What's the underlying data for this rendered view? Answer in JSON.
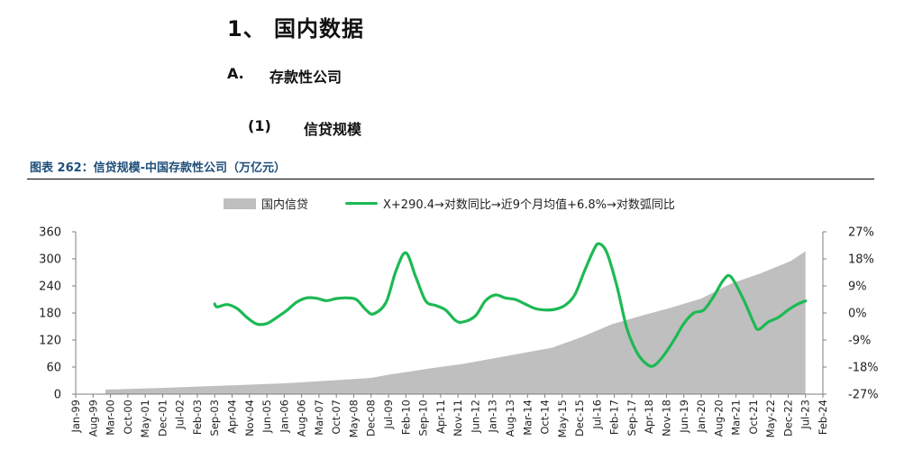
{
  "headings": {
    "h1": "1、 国内数据",
    "h2_num": "A.",
    "h2_text": "存款性公司",
    "h3_num": "(1)",
    "h3_text": "信贷规模"
  },
  "caption": "图表 262：信贷规模-中国存款性公司（万亿元）",
  "colors": {
    "area": "#bfbfbf",
    "line": "#1db954",
    "caption": "#1f4e79"
  },
  "chart_data": {
    "type": "area",
    "title": "图表 262：信贷规模-中国存款性公司（万亿元）",
    "xlabel": "",
    "ylabel": "",
    "legend_position": "top-center",
    "grid": false,
    "x_tick_labels": [
      "Jan-99",
      "Aug-99",
      "Mar-00",
      "Oct-00",
      "May-01",
      "Dec-01",
      "Jul-02",
      "Feb-03",
      "Sep-03",
      "Apr-04",
      "Nov-04",
      "Jun-05",
      "Jan-06",
      "Aug-06",
      "Mar-07",
      "Oct-07",
      "May-08",
      "Dec-08",
      "Jul-09",
      "Feb-10",
      "Sep-10",
      "Apr-11",
      "Nov-11",
      "Jun-12",
      "Jan-13",
      "Aug-13",
      "Mar-14",
      "Oct-14",
      "May-15",
      "Dec-15",
      "Jul-16",
      "Feb-17",
      "Sep-17",
      "Apr-18",
      "Nov-18",
      "Jun-19",
      "Jan-20",
      "Aug-20",
      "Mar-21",
      "Oct-21",
      "May-22",
      "Dec-22",
      "Jul-23",
      "Feb-24"
    ],
    "x_range": [
      "Jan-99",
      "Feb-24"
    ],
    "y_left": {
      "range": [
        0,
        360
      ],
      "ticks": [
        0,
        60,
        120,
        180,
        240,
        300,
        360
      ]
    },
    "y_right": {
      "range": [
        -27,
        27
      ],
      "ticks": [
        "27%",
        "18%",
        "9%",
        "0%",
        "-9%",
        "-18%",
        "-27%"
      ]
    },
    "series": [
      {
        "name": "国内信贷",
        "kind": "area",
        "axis": "left",
        "points": [
          [
            "Jan-00",
            10
          ],
          [
            "Jan-02",
            14
          ],
          [
            "Jan-04",
            19
          ],
          [
            "Jan-06",
            24
          ],
          [
            "Jan-08",
            32
          ],
          [
            "Dec-08",
            36
          ],
          [
            "Jul-09",
            43
          ],
          [
            "Jan-11",
            58
          ],
          [
            "Jan-12",
            67
          ],
          [
            "Jan-13",
            79
          ],
          [
            "Jan-14",
            91
          ],
          [
            "Jan-15",
            103
          ],
          [
            "Jan-16",
            127
          ],
          [
            "Jan-17",
            155
          ],
          [
            "Jan-18",
            174
          ],
          [
            "Jan-19",
            192
          ],
          [
            "Jan-20",
            212
          ],
          [
            "Jan-21",
            245
          ],
          [
            "Jan-22",
            268
          ],
          [
            "Jan-23",
            295
          ],
          [
            "Jul-23",
            317
          ]
        ]
      },
      {
        "name": "X+290.4→对数同比→近9个月均值+6.8%→对数弧同比",
        "kind": "line",
        "axis": "right",
        "points": [
          [
            "Sep-03",
            3.0
          ],
          [
            "Oct-03",
            2.0
          ],
          [
            "Feb-04",
            2.8
          ],
          [
            "Jun-04",
            1.5
          ],
          [
            "Oct-04",
            -1.5
          ],
          [
            "Feb-05",
            -3.7
          ],
          [
            "Jun-05",
            -3.5
          ],
          [
            "Oct-05",
            -1.5
          ],
          [
            "Feb-06",
            0.8
          ],
          [
            "Jun-06",
            3.6
          ],
          [
            "Oct-06",
            5.0
          ],
          [
            "Feb-07",
            4.9
          ],
          [
            "Jun-07",
            4.1
          ],
          [
            "Oct-07",
            4.8
          ],
          [
            "Feb-08",
            5.0
          ],
          [
            "Jun-08",
            4.5
          ],
          [
            "Oct-08",
            1.0
          ],
          [
            "Jan-09",
            -0.3
          ],
          [
            "Jun-09",
            3.5
          ],
          [
            "Oct-09",
            14.0
          ],
          [
            "Feb-10",
            20.0
          ],
          [
            "Jun-10",
            12.0
          ],
          [
            "Oct-10",
            4.0
          ],
          [
            "Feb-11",
            2.5
          ],
          [
            "Jun-11",
            1.0
          ],
          [
            "Oct-11",
            -2.5
          ],
          [
            "Jan-12",
            -3.0
          ],
          [
            "Jun-12",
            -1.0
          ],
          [
            "Oct-12",
            4.0
          ],
          [
            "Feb-13",
            6.0
          ],
          [
            "Jun-13",
            5.0
          ],
          [
            "Oct-13",
            4.5
          ],
          [
            "Feb-14",
            3.0
          ],
          [
            "Jun-14",
            1.5
          ],
          [
            "Oct-14",
            1.0
          ],
          [
            "Feb-15",
            1.2
          ],
          [
            "Jun-15",
            2.5
          ],
          [
            "Oct-15",
            6.0
          ],
          [
            "Feb-16",
            14.0
          ],
          [
            "Jun-16",
            21.5
          ],
          [
            "Aug-16",
            23.0
          ],
          [
            "Nov-16",
            20.0
          ],
          [
            "Mar-17",
            9.0
          ],
          [
            "Jul-17",
            -5.0
          ],
          [
            "Nov-17",
            -13.0
          ],
          [
            "Mar-18",
            -17.0
          ],
          [
            "Jun-18",
            -17.5
          ],
          [
            "Oct-18",
            -14.0
          ],
          [
            "Feb-19",
            -9.0
          ],
          [
            "Jun-19",
            -3.5
          ],
          [
            "Oct-19",
            0.0
          ],
          [
            "Feb-20",
            1.0
          ],
          [
            "Jun-20",
            5.5
          ],
          [
            "Oct-20",
            11.0
          ],
          [
            "Jan-21",
            12.0
          ],
          [
            "Jun-21",
            4.5
          ],
          [
            "Oct-21",
            -3.0
          ],
          [
            "Dec-21",
            -5.5
          ],
          [
            "Apr-22",
            -3.0
          ],
          [
            "Aug-22",
            -1.5
          ],
          [
            "Dec-22",
            1.0
          ],
          [
            "Apr-23",
            3.0
          ],
          [
            "Jul-23",
            4.0
          ]
        ]
      }
    ]
  }
}
